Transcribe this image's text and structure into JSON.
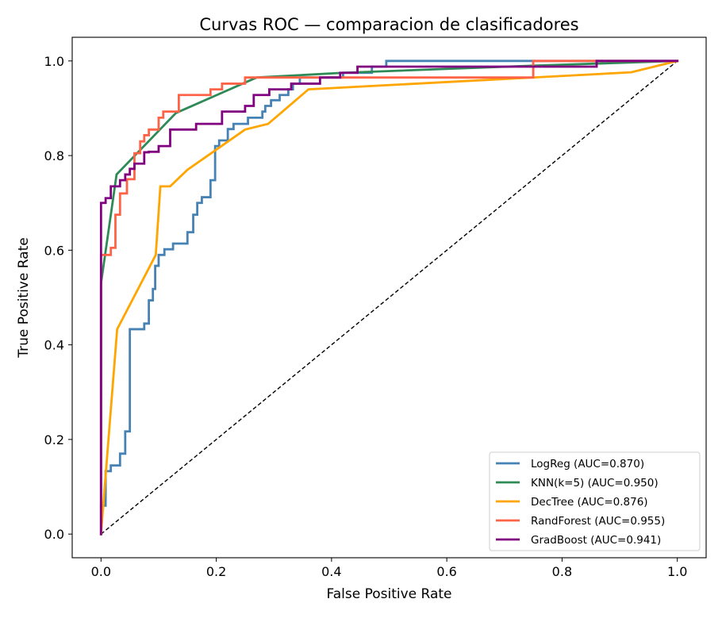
{
  "chart_data": {
    "type": "line",
    "title": "Curvas ROC — comparacion de clasificadores",
    "xlabel": "False Positive Rate",
    "ylabel": "True Positive Rate",
    "xlim": [
      -0.05,
      1.05
    ],
    "ylim": [
      -0.05,
      1.05
    ],
    "xticks": [
      0.0,
      0.2,
      0.4,
      0.6,
      0.8,
      1.0
    ],
    "yticks": [
      0.0,
      0.2,
      0.4,
      0.6,
      0.8,
      1.0
    ],
    "xtick_labels": [
      "0.0",
      "0.2",
      "0.4",
      "0.6",
      "0.8",
      "1.0"
    ],
    "ytick_labels": [
      "0.0",
      "0.2",
      "0.4",
      "0.6",
      "0.8",
      "1.0"
    ],
    "grid": false,
    "legend_position": "lower-right",
    "diagonal": {
      "x": [
        0,
        1
      ],
      "y": [
        0,
        1
      ],
      "color": "#000000",
      "style": "dashed"
    },
    "series": [
      {
        "name": "LogReg (AUC=0.870)",
        "color": "#4682b4",
        "x": [
          0,
          0,
          0.008,
          0.008,
          0.017,
          0.017,
          0.033,
          0.033,
          0.042,
          0.042,
          0.05,
          0.05,
          0.075,
          0.075,
          0.083,
          0.083,
          0.09,
          0.09,
          0.094,
          0.094,
          0.1,
          0.1,
          0.11,
          0.11,
          0.125,
          0.125,
          0.15,
          0.15,
          0.16,
          0.16,
          0.167,
          0.167,
          0.175,
          0.175,
          0.19,
          0.19,
          0.198,
          0.198,
          0.205,
          0.205,
          0.22,
          0.22,
          0.23,
          0.23,
          0.255,
          0.255,
          0.28,
          0.28,
          0.285,
          0.285,
          0.295,
          0.295,
          0.31,
          0.31,
          0.325,
          0.325,
          0.333,
          0.333,
          0.345,
          0.345,
          0.36,
          0.36,
          0.39,
          0.39,
          0.42,
          0.42,
          0.47,
          0.47,
          0.495,
          0.495,
          1.0
        ],
        "y": [
          0,
          0.06,
          0.06,
          0.133,
          0.133,
          0.145,
          0.145,
          0.17,
          0.17,
          0.217,
          0.217,
          0.433,
          0.433,
          0.445,
          0.445,
          0.494,
          0.494,
          0.518,
          0.518,
          0.567,
          0.567,
          0.59,
          0.59,
          0.602,
          0.602,
          0.614,
          0.614,
          0.638,
          0.638,
          0.675,
          0.675,
          0.7,
          0.7,
          0.712,
          0.712,
          0.748,
          0.748,
          0.82,
          0.82,
          0.832,
          0.832,
          0.856,
          0.856,
          0.867,
          0.867,
          0.88,
          0.88,
          0.893,
          0.893,
          0.905,
          0.905,
          0.917,
          0.917,
          0.928,
          0.928,
          0.94,
          0.94,
          0.952,
          0.952,
          0.965,
          0.965,
          0.965,
          0.965,
          0.965,
          0.965,
          0.975,
          0.975,
          0.988,
          0.988,
          1.0,
          1.0
        ]
      },
      {
        "name": "KNN(k=5) (AUC=0.950)",
        "color": "#2e8b57",
        "x": [
          0,
          0,
          0.027,
          0.13,
          0.27,
          0.42,
          0.75,
          1.0
        ],
        "y": [
          0,
          0.53,
          0.76,
          0.89,
          0.965,
          0.975,
          0.99,
          1.0
        ]
      },
      {
        "name": "DecTree (AUC=0.876)",
        "color": "#ffa500",
        "x": [
          0,
          0.028,
          0.095,
          0.103,
          0.12,
          0.15,
          0.25,
          0.29,
          0.36,
          0.92,
          1.0
        ],
        "y": [
          0,
          0.433,
          0.59,
          0.735,
          0.735,
          0.77,
          0.855,
          0.867,
          0.94,
          0.976,
          1.0
        ]
      },
      {
        "name": "RandForest (AUC=0.955)",
        "color": "#ff6347",
        "x": [
          0,
          0,
          0.008,
          0.008,
          0.017,
          0.017,
          0.025,
          0.025,
          0.033,
          0.033,
          0.045,
          0.045,
          0.058,
          0.058,
          0.068,
          0.068,
          0.075,
          0.075,
          0.083,
          0.083,
          0.1,
          0.1,
          0.108,
          0.108,
          0.135,
          0.135,
          0.19,
          0.19,
          0.21,
          0.21,
          0.235,
          0.235,
          0.25,
          0.25,
          0.75,
          0.75,
          1.0
        ],
        "y": [
          0,
          0.59,
          0.59,
          0.59,
          0.59,
          0.605,
          0.605,
          0.675,
          0.675,
          0.72,
          0.72,
          0.75,
          0.75,
          0.805,
          0.805,
          0.83,
          0.83,
          0.843,
          0.843,
          0.855,
          0.855,
          0.88,
          0.88,
          0.893,
          0.893,
          0.928,
          0.928,
          0.94,
          0.94,
          0.952,
          0.952,
          0.952,
          0.952,
          0.965,
          0.965,
          1.0,
          1.0
        ]
      },
      {
        "name": "GradBoost (AUC=0.941)",
        "color": "#800080",
        "x": [
          0,
          0,
          0.008,
          0.008,
          0.017,
          0.017,
          0.025,
          0.025,
          0.033,
          0.033,
          0.042,
          0.042,
          0.05,
          0.05,
          0.058,
          0.058,
          0.075,
          0.075,
          0.083,
          0.083,
          0.1,
          0.1,
          0.12,
          0.12,
          0.165,
          0.165,
          0.21,
          0.21,
          0.25,
          0.25,
          0.265,
          0.265,
          0.292,
          0.292,
          0.33,
          0.33,
          0.38,
          0.38,
          0.415,
          0.415,
          0.445,
          0.445,
          0.86,
          0.86,
          1.0
        ],
        "y": [
          0,
          0.7,
          0.7,
          0.71,
          0.71,
          0.735,
          0.735,
          0.735,
          0.735,
          0.748,
          0.748,
          0.76,
          0.76,
          0.772,
          0.772,
          0.783,
          0.783,
          0.807,
          0.807,
          0.808,
          0.808,
          0.82,
          0.82,
          0.855,
          0.855,
          0.867,
          0.867,
          0.893,
          0.893,
          0.905,
          0.905,
          0.928,
          0.928,
          0.94,
          0.94,
          0.952,
          0.952,
          0.965,
          0.965,
          0.975,
          0.975,
          0.988,
          0.988,
          1.0,
          1.0
        ]
      }
    ]
  }
}
